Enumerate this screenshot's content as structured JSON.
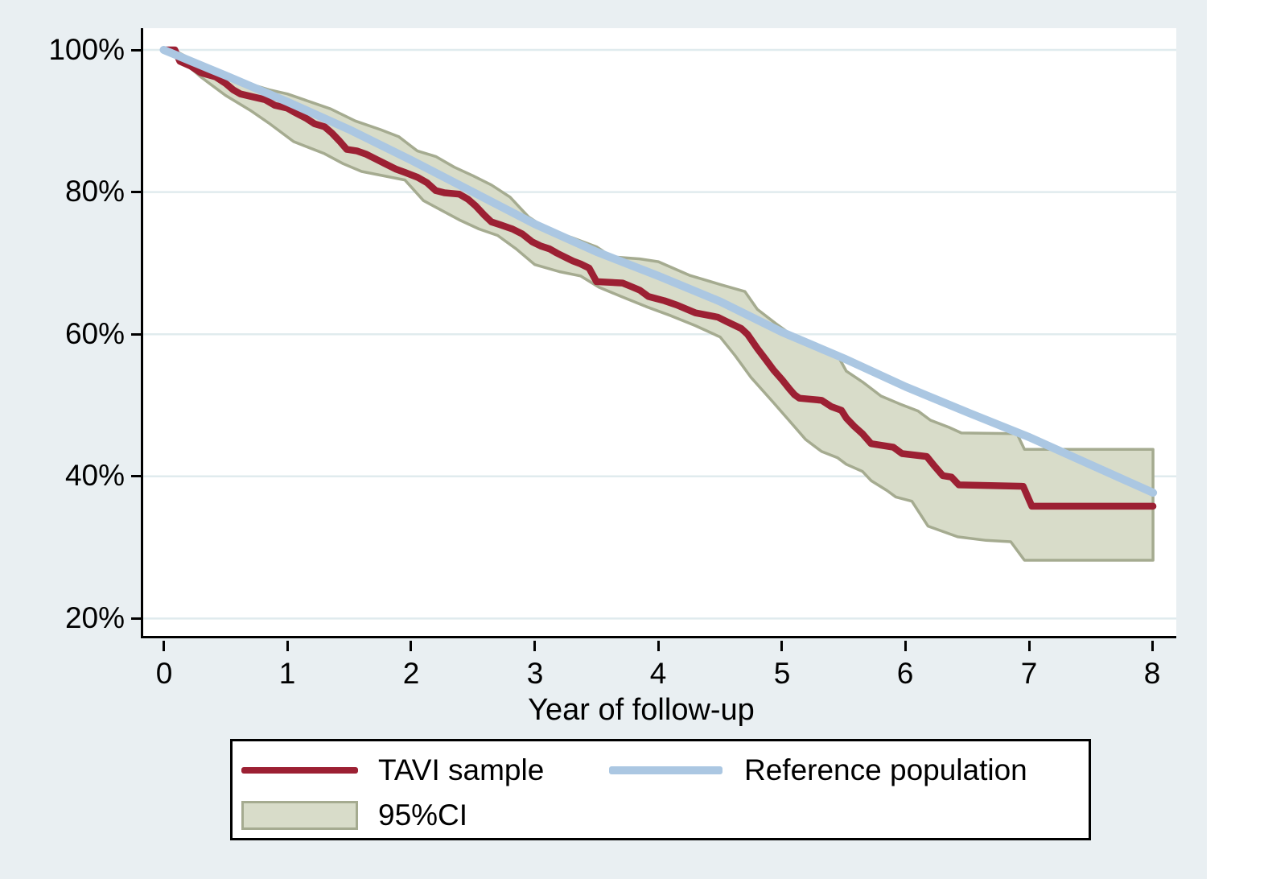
{
  "figure": {
    "background": "#e9eff2",
    "plot_background": "#ffffff",
    "gridline_color": "#e0ebee"
  },
  "y_axis": {
    "labels": [
      "100%",
      "80%",
      "60%",
      "40%",
      "20%"
    ],
    "values": [
      100,
      80,
      60,
      40,
      20
    ]
  },
  "x_axis": {
    "title": "Year of follow-up",
    "labels": [
      "0",
      "1",
      "2",
      "3",
      "4",
      "5",
      "6",
      "7",
      "8"
    ],
    "values": [
      0,
      1,
      2,
      3,
      4,
      5,
      6,
      7,
      8
    ]
  },
  "legend": {
    "items": [
      {
        "label": "TAVI sample",
        "type": "line",
        "color": "#9c2033"
      },
      {
        "label": "Reference population",
        "type": "line",
        "color": "#abc7e2"
      },
      {
        "label": "95%CI",
        "type": "area",
        "fill": "#d8dcc9",
        "border": "#a5ab90"
      }
    ]
  },
  "chart_data": {
    "type": "line",
    "title": "",
    "xlabel": "Year of follow-up",
    "ylabel": "",
    "xlim": [
      -0.17,
      8.19
    ],
    "ylim": [
      17.6,
      103.1
    ],
    "grid": true,
    "legend_position": "bottom",
    "series": [
      {
        "name": "TAVI sample",
        "color": "#9c2033",
        "width": 8.5,
        "style": "step",
        "points": [
          [
            0,
            100
          ],
          [
            0.09,
            100
          ],
          [
            0.13,
            98.4
          ],
          [
            0.22,
            97.7
          ],
          [
            0.3,
            96.8
          ],
          [
            0.42,
            96.2
          ],
          [
            0.5,
            95.3
          ],
          [
            0.56,
            94.4
          ],
          [
            0.62,
            93.8
          ],
          [
            0.72,
            93.4
          ],
          [
            0.82,
            93.0
          ],
          [
            0.9,
            92.2
          ],
          [
            1.0,
            91.8
          ],
          [
            1.05,
            91.3
          ],
          [
            1.15,
            90.4
          ],
          [
            1.22,
            89.6
          ],
          [
            1.3,
            89.2
          ],
          [
            1.36,
            88.3
          ],
          [
            1.42,
            87.2
          ],
          [
            1.48,
            86.0
          ],
          [
            1.56,
            85.8
          ],
          [
            1.64,
            85.3
          ],
          [
            1.72,
            84.6
          ],
          [
            1.8,
            83.9
          ],
          [
            1.88,
            83.2
          ],
          [
            1.96,
            82.7
          ],
          [
            2.05,
            82.1
          ],
          [
            2.13,
            81.3
          ],
          [
            2.2,
            80.2
          ],
          [
            2.27,
            79.9
          ],
          [
            2.39,
            79.7
          ],
          [
            2.46,
            79.0
          ],
          [
            2.52,
            78.1
          ],
          [
            2.59,
            76.8
          ],
          [
            2.65,
            75.8
          ],
          [
            2.72,
            75.4
          ],
          [
            2.82,
            74.8
          ],
          [
            2.9,
            74.1
          ],
          [
            2.98,
            73.0
          ],
          [
            3.05,
            72.4
          ],
          [
            3.12,
            72.0
          ],
          [
            3.18,
            71.4
          ],
          [
            3.25,
            70.8
          ],
          [
            3.31,
            70.3
          ],
          [
            3.37,
            69.9
          ],
          [
            3.44,
            69.3
          ],
          [
            3.5,
            67.4
          ],
          [
            3.71,
            67.2
          ],
          [
            3.78,
            66.7
          ],
          [
            3.85,
            66.2
          ],
          [
            3.92,
            65.3
          ],
          [
            4.05,
            64.7
          ],
          [
            4.15,
            64.1
          ],
          [
            4.3,
            63.0
          ],
          [
            4.48,
            62.4
          ],
          [
            4.55,
            61.8
          ],
          [
            4.67,
            60.8
          ],
          [
            4.72,
            60.0
          ],
          [
            4.8,
            58.0
          ],
          [
            4.87,
            56.4
          ],
          [
            4.93,
            55.0
          ],
          [
            5.0,
            53.6
          ],
          [
            5.06,
            52.3
          ],
          [
            5.1,
            51.5
          ],
          [
            5.14,
            51.0
          ],
          [
            5.32,
            50.7
          ],
          [
            5.4,
            49.8
          ],
          [
            5.48,
            49.3
          ],
          [
            5.52,
            48.2
          ],
          [
            5.58,
            47.1
          ],
          [
            5.65,
            46.0
          ],
          [
            5.72,
            44.6
          ],
          [
            5.9,
            44.1
          ],
          [
            5.97,
            43.2
          ],
          [
            6.17,
            42.8
          ],
          [
            6.23,
            41.5
          ],
          [
            6.3,
            40.1
          ],
          [
            6.37,
            39.9
          ],
          [
            6.43,
            38.8
          ],
          [
            6.95,
            38.6
          ],
          [
            7.02,
            35.8
          ],
          [
            8,
            35.8
          ]
        ]
      },
      {
        "name": "Reference population",
        "color": "#abc7e2",
        "width": 10,
        "style": "smooth",
        "points": [
          [
            0,
            100
          ],
          [
            0.5,
            96.4
          ],
          [
            1,
            92.7
          ],
          [
            1.5,
            88.8
          ],
          [
            2,
            84.5
          ],
          [
            2.5,
            80.0
          ],
          [
            3,
            75.5
          ],
          [
            3.5,
            71.6
          ],
          [
            4,
            68.2
          ],
          [
            4.5,
            64.6
          ],
          [
            5,
            60.3
          ],
          [
            5.5,
            56.6
          ],
          [
            6,
            52.6
          ],
          [
            6.5,
            49.0
          ],
          [
            7,
            45.5
          ],
          [
            7.5,
            41.6
          ],
          [
            8,
            37.7
          ]
        ]
      }
    ],
    "ci_band": {
      "name": "95%CI",
      "fill": "#d8dcc9",
      "border": "#a5ab90",
      "upper": [
        [
          0.08,
          100
        ],
        [
          0.1,
          99.8
        ],
        [
          0.3,
          98.0
        ],
        [
          0.5,
          96.4
        ],
        [
          0.7,
          95.2
        ],
        [
          0.85,
          94.4
        ],
        [
          1.0,
          93.8
        ],
        [
          1.2,
          92.6
        ],
        [
          1.35,
          91.7
        ],
        [
          1.55,
          90.0
        ],
        [
          1.75,
          88.8
        ],
        [
          1.9,
          87.8
        ],
        [
          2.05,
          85.8
        ],
        [
          2.2,
          85.0
        ],
        [
          2.35,
          83.5
        ],
        [
          2.5,
          82.3
        ],
        [
          2.65,
          81.0
        ],
        [
          2.8,
          79.3
        ],
        [
          2.95,
          76.5
        ],
        [
          3.1,
          74.8
        ],
        [
          3.3,
          73.6
        ],
        [
          3.5,
          72.3
        ],
        [
          3.62,
          70.9
        ],
        [
          3.85,
          70.6
        ],
        [
          4.0,
          70.2
        ],
        [
          4.25,
          68.3
        ],
        [
          4.5,
          67.0
        ],
        [
          4.7,
          66.0
        ],
        [
          4.8,
          63.5
        ],
        [
          4.95,
          61.5
        ],
        [
          5.1,
          59.6
        ],
        [
          5.3,
          58.2
        ],
        [
          5.45,
          57.0
        ],
        [
          5.52,
          54.8
        ],
        [
          5.65,
          53.3
        ],
        [
          5.8,
          51.3
        ],
        [
          5.95,
          50.2
        ],
        [
          6.1,
          49.2
        ],
        [
          6.2,
          47.9
        ],
        [
          6.35,
          46.9
        ],
        [
          6.45,
          46.1
        ],
        [
          6.9,
          46.0
        ],
        [
          6.96,
          43.8
        ],
        [
          8,
          43.8
        ]
      ],
      "lower": [
        [
          0.08,
          99.8
        ],
        [
          0.1,
          99.2
        ],
        [
          0.3,
          96.2
        ],
        [
          0.5,
          93.6
        ],
        [
          0.7,
          91.5
        ],
        [
          0.85,
          89.7
        ],
        [
          1.05,
          87.1
        ],
        [
          1.3,
          85.4
        ],
        [
          1.45,
          84.0
        ],
        [
          1.6,
          82.9
        ],
        [
          1.95,
          81.7
        ],
        [
          2.1,
          78.8
        ],
        [
          2.25,
          77.4
        ],
        [
          2.4,
          76.0
        ],
        [
          2.55,
          74.8
        ],
        [
          2.7,
          73.9
        ],
        [
          2.85,
          72.0
        ],
        [
          3.0,
          69.8
        ],
        [
          3.2,
          68.8
        ],
        [
          3.37,
          68.2
        ],
        [
          3.52,
          66.6
        ],
        [
          3.7,
          65.3
        ],
        [
          3.9,
          63.9
        ],
        [
          4.1,
          62.6
        ],
        [
          4.3,
          61.2
        ],
        [
          4.5,
          59.6
        ],
        [
          4.62,
          57.0
        ],
        [
          4.75,
          53.9
        ],
        [
          4.93,
          50.4
        ],
        [
          5.06,
          47.8
        ],
        [
          5.19,
          45.2
        ],
        [
          5.32,
          43.5
        ],
        [
          5.45,
          42.6
        ],
        [
          5.52,
          41.7
        ],
        [
          5.65,
          40.7
        ],
        [
          5.72,
          39.4
        ],
        [
          5.85,
          38.0
        ],
        [
          5.92,
          37.1
        ],
        [
          6.05,
          36.5
        ],
        [
          6.18,
          33.0
        ],
        [
          6.42,
          31.5
        ],
        [
          6.65,
          31.0
        ],
        [
          6.85,
          30.8
        ],
        [
          6.96,
          28.2
        ],
        [
          8,
          28.2
        ]
      ]
    }
  }
}
